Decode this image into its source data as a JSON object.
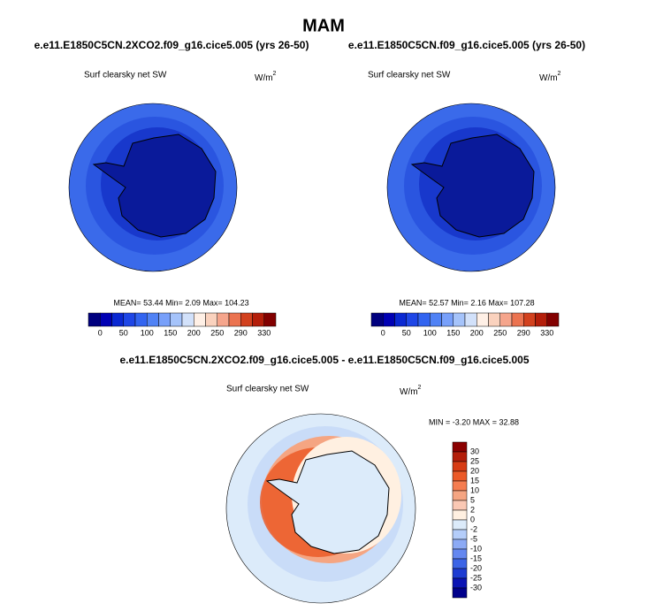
{
  "title": "MAM",
  "panels": [
    {
      "title": "e.e11.E1850C5CN.2XCO2.f09_g16.cice5.005 (yrs 26-50)",
      "variable": "Surf clearsky net SW",
      "units": {
        "base": "W/m",
        "sup": "2"
      },
      "stats": "MEAN=  53.44  Min=   2.09  Max= 104.23"
    },
    {
      "title": "e.e11.E1850C5CN.f09_g16.cice5.005 (yrs 26-50)",
      "variable": "Surf clearsky net SW",
      "units": {
        "base": "W/m",
        "sup": "2"
      },
      "stats": "MEAN=  52.57  Min=   2.16  Max= 107.28"
    },
    {
      "title": "e.e11.E1850C5CN.2XCO2.f09_g16.cice5.005 - e.e11.E1850C5CN.f09_g16.cice5.005",
      "variable": "Surf clearsky net SW",
      "units": {
        "base": "W/m",
        "sup": "2"
      },
      "stats": "MIN = -3.20 MAX =  32.88"
    }
  ],
  "colorbar_abs": {
    "labels": [
      0,
      50,
      100,
      150,
      200,
      250,
      290,
      330
    ],
    "colors": [
      "#00007f",
      "#0000b4",
      "#0a28d2",
      "#1e46e6",
      "#3264f0",
      "#5082f5",
      "#78a0fa",
      "#a5c3fa",
      "#d2e1fa",
      "#fff0e6",
      "#fad2be",
      "#f5a58c",
      "#eb7350",
      "#d2411e",
      "#b41e0a",
      "#820000"
    ]
  },
  "colorbar_diff": {
    "labels": [
      30,
      25,
      20,
      15,
      10,
      5,
      2,
      0,
      -2,
      -5,
      -10,
      -15,
      -20,
      -25,
      -30
    ],
    "colors": [
      "#8b0000",
      "#b41e0a",
      "#d73c14",
      "#eb5a28",
      "#f57d50",
      "#f5a582",
      "#fac8b4",
      "#fff0e1",
      "#dcebfa",
      "#b4cdfa",
      "#8caaf5",
      "#6487f0",
      "#3c64e6",
      "#1e3cd2",
      "#0a14b4",
      "#00008b"
    ]
  }
}
